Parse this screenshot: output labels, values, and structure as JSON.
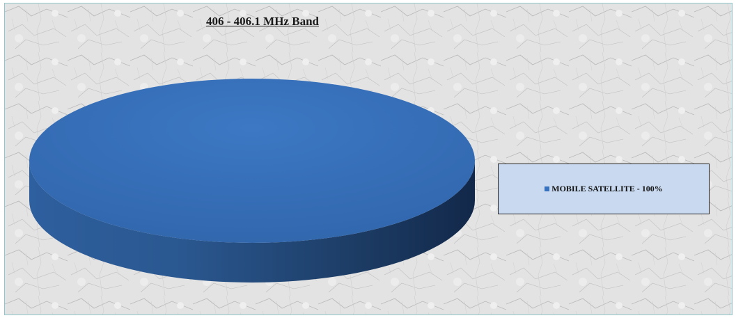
{
  "chart_data": {
    "type": "pie",
    "title": "406 - 406.1 MHz Band",
    "slices": [
      {
        "label": "MOBILE SATELLITE - 100%",
        "value": 100,
        "color": "#3872be"
      }
    ],
    "legend_position": "right",
    "style": "3d"
  }
}
